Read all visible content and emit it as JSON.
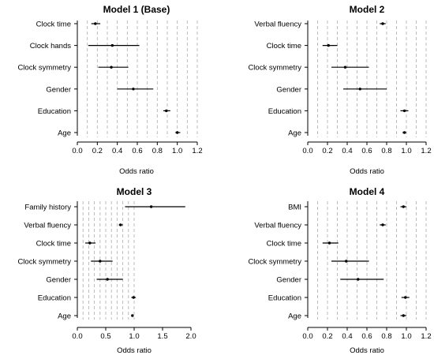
{
  "chart_data": [
    {
      "type": "forest",
      "title": "Model 1 (Base)",
      "xlabel": "Odds ratio",
      "xlim": [
        0,
        1.2
      ],
      "xticks": [
        "0.0",
        "0.2",
        "0.4",
        "0.6",
        "0.8",
        "1.0",
        "1.2"
      ],
      "reference_lines": [
        0.1,
        0.2,
        0.3,
        0.4,
        0.5,
        0.6,
        0.7,
        0.8,
        0.9,
        1.0,
        1.1,
        1.2
      ],
      "grid": "vertical dashed",
      "rows": [
        {
          "label": "Clock time",
          "or": 0.18,
          "lo": 0.14,
          "hi": 0.23
        },
        {
          "label": "Clock hands",
          "or": 0.35,
          "lo": 0.11,
          "hi": 0.62
        },
        {
          "label": "Clock symmetry",
          "or": 0.34,
          "lo": 0.21,
          "hi": 0.51
        },
        {
          "label": "Gender",
          "or": 0.56,
          "lo": 0.4,
          "hi": 0.76
        },
        {
          "label": "Education",
          "or": 0.89,
          "lo": 0.86,
          "hi": 0.93
        },
        {
          "label": "Age",
          "or": 1.0,
          "lo": 0.98,
          "hi": 1.03
        }
      ]
    },
    {
      "type": "forest",
      "title": "Model 2",
      "xlabel": "Odds ratio",
      "xlim": [
        0,
        1.2
      ],
      "xticks": [
        "0.0",
        "0.2",
        "0.4",
        "0.6",
        "0.8",
        "1.0",
        "1.2"
      ],
      "reference_lines": [
        0.1,
        0.2,
        0.3,
        0.4,
        0.5,
        0.6,
        0.7,
        0.8,
        0.9,
        1.0,
        1.1,
        1.2
      ],
      "grid": "vertical dashed",
      "rows": [
        {
          "label": "Verbal fluency",
          "or": 0.76,
          "lo": 0.73,
          "hi": 0.79
        },
        {
          "label": "Clock time",
          "or": 0.21,
          "lo": 0.15,
          "hi": 0.3
        },
        {
          "label": "Clock symmetry",
          "or": 0.38,
          "lo": 0.24,
          "hi": 0.62
        },
        {
          "label": "Gender",
          "or": 0.53,
          "lo": 0.36,
          "hi": 0.8
        },
        {
          "label": "Education",
          "or": 0.98,
          "lo": 0.94,
          "hi": 1.02
        },
        {
          "label": "Age",
          "or": 0.98,
          "lo": 0.96,
          "hi": 1.0
        }
      ]
    },
    {
      "type": "forest",
      "title": "Model 3",
      "xlabel": "Odds ratio",
      "xlim": [
        0,
        2.0
      ],
      "xticks": [
        "0.0",
        "0.5",
        "1.0",
        "1.5",
        "2.0"
      ],
      "reference_lines": [
        0.1,
        0.2,
        0.3,
        0.4,
        0.5,
        0.6,
        0.7,
        0.8,
        0.9,
        1.0
      ],
      "grid": "vertical dashed",
      "rows": [
        {
          "label": "Family history",
          "or": 1.3,
          "lo": 0.84,
          "hi": 1.9
        },
        {
          "label": "Verbal fluency",
          "or": 0.76,
          "lo": 0.73,
          "hi": 0.8
        },
        {
          "label": "Clock time",
          "or": 0.22,
          "lo": 0.14,
          "hi": 0.32
        },
        {
          "label": "Clock symmetry",
          "or": 0.4,
          "lo": 0.24,
          "hi": 0.62
        },
        {
          "label": "Gender",
          "or": 0.53,
          "lo": 0.34,
          "hi": 0.8
        },
        {
          "label": "Education",
          "or": 0.99,
          "lo": 0.95,
          "hi": 1.03
        },
        {
          "label": "Age",
          "or": 0.97,
          "lo": 0.95,
          "hi": 0.99
        }
      ]
    },
    {
      "type": "forest",
      "title": "Model 4",
      "xlabel": "Odds ratio",
      "xlim": [
        0,
        1.2
      ],
      "xticks": [
        "0.0",
        "0.2",
        "0.4",
        "0.6",
        "0.8",
        "1.0",
        "1.2"
      ],
      "reference_lines": [
        0.1,
        0.2,
        0.3,
        0.4,
        0.5,
        0.6,
        0.7,
        0.8,
        0.9,
        1.0,
        1.1,
        1.2
      ],
      "grid": "vertical dashed",
      "rows": [
        {
          "label": "BMI",
          "or": 0.97,
          "lo": 0.94,
          "hi": 1.0
        },
        {
          "label": "Verbal fluency",
          "or": 0.76,
          "lo": 0.73,
          "hi": 0.79
        },
        {
          "label": "Clock time",
          "or": 0.22,
          "lo": 0.15,
          "hi": 0.31
        },
        {
          "label": "Clock symmetry",
          "or": 0.39,
          "lo": 0.24,
          "hi": 0.62
        },
        {
          "label": "Gender",
          "or": 0.51,
          "lo": 0.33,
          "hi": 0.77
        },
        {
          "label": "Education",
          "or": 0.99,
          "lo": 0.95,
          "hi": 1.03
        },
        {
          "label": "Age",
          "or": 0.97,
          "lo": 0.94,
          "hi": 1.0
        }
      ]
    }
  ]
}
